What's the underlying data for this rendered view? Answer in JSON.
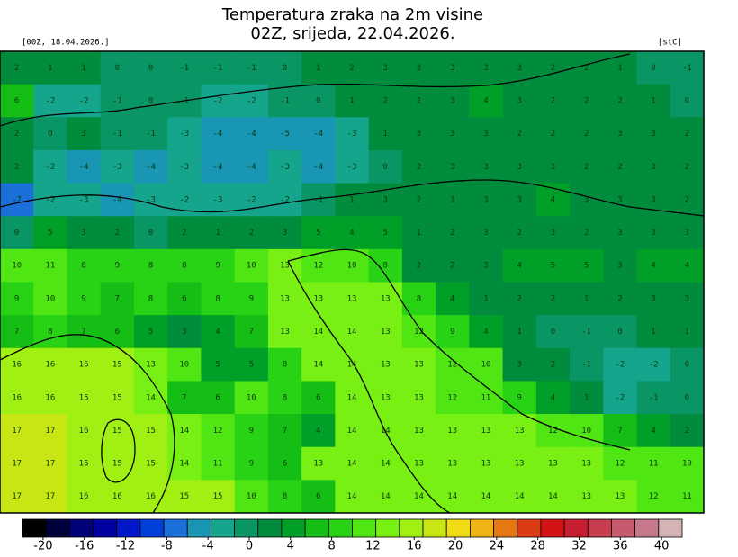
{
  "header": {
    "title": "Temperatura zraka na 2m visine",
    "subtitle": "02Z, srijeda, 22.04.2026.",
    "run": "[00Z, 18.04.2026.]",
    "unit": "[stC]"
  },
  "map": {
    "grid": [
      [
        2,
        1,
        1,
        0,
        0,
        -1,
        -1,
        -1,
        0,
        1,
        2,
        3,
        3,
        3,
        3,
        3,
        2,
        2,
        1,
        0,
        -1
      ],
      [
        6,
        -2,
        -2,
        -1,
        0,
        -1,
        -2,
        -2,
        -1,
        0,
        1,
        2,
        2,
        3,
        4,
        3,
        2,
        2,
        2,
        1,
        0
      ],
      [
        2,
        0,
        3,
        -1,
        -1,
        -3,
        -4,
        -4,
        -5,
        -4,
        -3,
        1,
        3,
        3,
        3,
        2,
        2,
        2,
        3,
        3,
        2
      ],
      [
        2,
        -2,
        -4,
        -3,
        -4,
        -3,
        -4,
        -4,
        -3,
        -4,
        -3,
        0,
        2,
        3,
        3,
        3,
        3,
        2,
        2,
        3,
        2
      ],
      [
        -7,
        -2,
        -3,
        -4,
        -3,
        -2,
        -3,
        -2,
        -2,
        -1,
        1,
        3,
        2,
        3,
        3,
        3,
        4,
        3,
        3,
        3,
        2
      ],
      [
        0,
        5,
        3,
        2,
        0,
        2,
        1,
        2,
        3,
        5,
        4,
        5,
        1,
        2,
        3,
        2,
        3,
        2,
        3,
        3,
        3
      ],
      [
        10,
        11,
        8,
        9,
        8,
        8,
        9,
        10,
        13,
        12,
        10,
        8,
        2,
        2,
        3,
        4,
        5,
        5,
        3,
        4,
        4
      ],
      [
        9,
        10,
        9,
        7,
        8,
        6,
        8,
        9,
        13,
        13,
        13,
        13,
        8,
        4,
        1,
        2,
        2,
        1,
        2,
        3,
        3
      ],
      [
        7,
        8,
        7,
        6,
        5,
        3,
        4,
        7,
        13,
        14,
        14,
        13,
        12,
        9,
        4,
        1,
        0,
        -1,
        0,
        1,
        1
      ],
      [
        16,
        16,
        16,
        15,
        13,
        10,
        5,
        5,
        8,
        14,
        14,
        13,
        13,
        12,
        10,
        3,
        2,
        -1,
        -2,
        -2,
        0
      ],
      [
        16,
        16,
        15,
        15,
        14,
        7,
        6,
        10,
        8,
        6,
        14,
        13,
        13,
        12,
        11,
        9,
        4,
        1,
        -2,
        -1,
        0
      ],
      [
        17,
        17,
        16,
        15,
        15,
        14,
        12,
        9,
        7,
        4,
        14,
        14,
        13,
        13,
        13,
        13,
        12,
        10,
        7,
        4,
        2
      ],
      [
        17,
        17,
        15,
        15,
        15,
        14,
        11,
        9,
        6,
        13,
        14,
        14,
        13,
        13,
        13,
        13,
        13,
        13,
        12,
        11,
        10
      ],
      [
        17,
        17,
        16,
        16,
        16,
        15,
        15,
        10,
        8,
        6,
        14,
        14,
        14,
        14,
        14,
        14,
        14,
        13,
        13,
        12,
        11
      ]
    ]
  },
  "colorbar": {
    "lim": [
      -22,
      42
    ],
    "ticks": [
      -20,
      -16,
      -12,
      -8,
      -4,
      0,
      4,
      8,
      12,
      16,
      20,
      24,
      28,
      32,
      36,
      40
    ],
    "colors": [
      "#000000",
      "#00003c",
      "#000078",
      "#0000a0",
      "#0018c8",
      "#0040d8",
      "#1a70d8",
      "#1896b4",
      "#14a58c",
      "#0a9664",
      "#008c3c",
      "#00a028",
      "#14be14",
      "#28d214",
      "#50e614",
      "#78f014",
      "#a0f014",
      "#c8e614",
      "#f0dc14",
      "#f0b414",
      "#e67814",
      "#dc3c14",
      "#d21414",
      "#c81e32",
      "#c83c50",
      "#c85a6e",
      "#c8788c",
      "#d4b4b4"
    ]
  }
}
